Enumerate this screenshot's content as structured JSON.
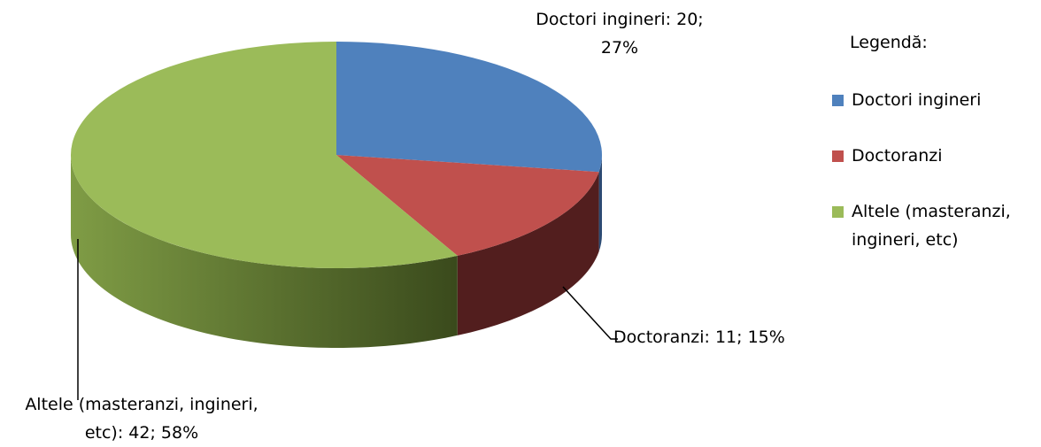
{
  "chart_data": {
    "type": "pie",
    "categories": [
      "Doctori ingineri",
      "Doctoranzi",
      "Altele (masteranzi, ingineri, etc)"
    ],
    "values": [
      20,
      11,
      42
    ],
    "percents": [
      27,
      15,
      58
    ],
    "value_labels": [
      "Doctori ingineri: 20;\n27%",
      "Doctoranzi: 11; 15%",
      "Altele (masteranzi, ingineri,\netc): 42; 58%"
    ],
    "colors": [
      "#4f81bd",
      "#c0504d",
      "#9bbb59"
    ],
    "legend_title": "Legendă:",
    "legend": "right"
  }
}
